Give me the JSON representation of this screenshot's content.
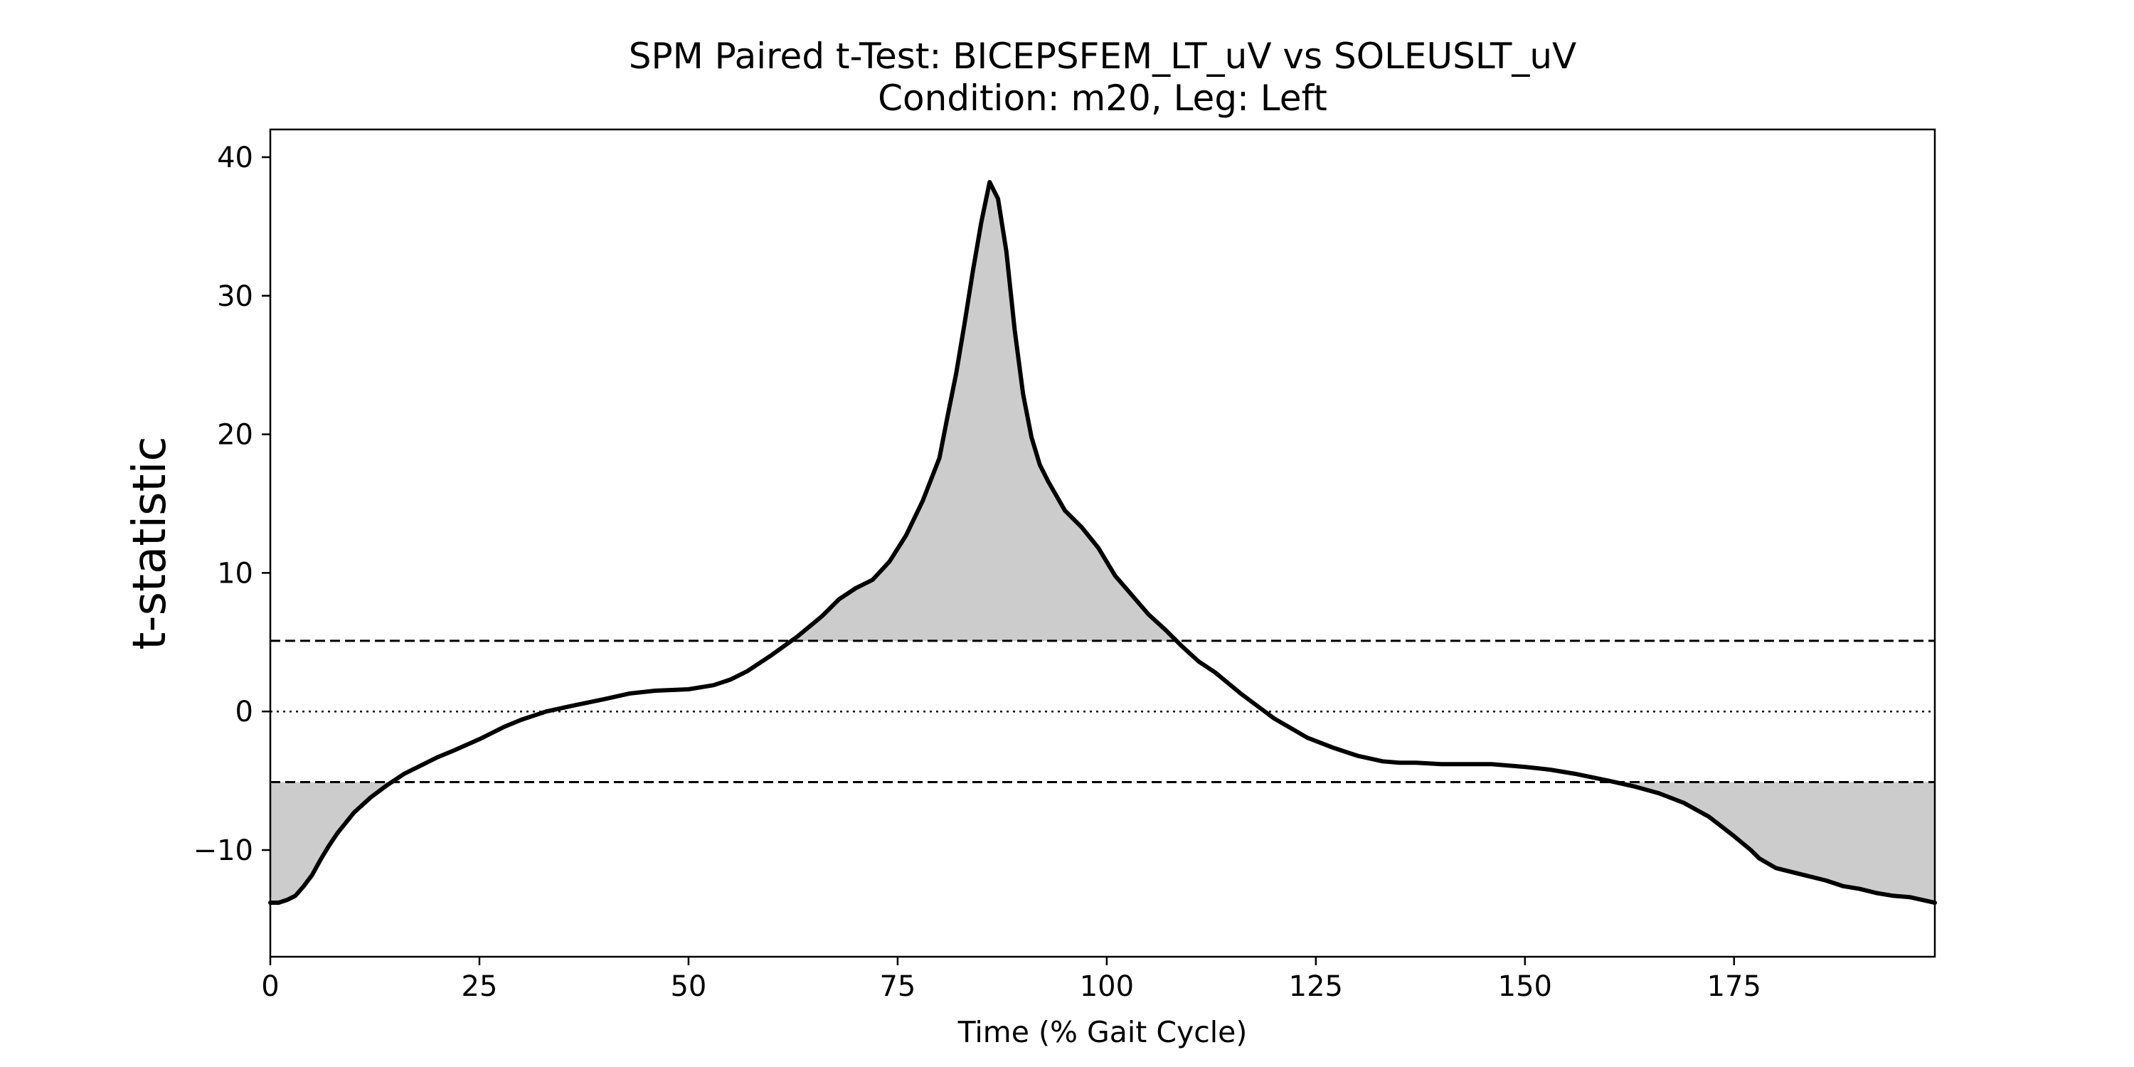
{
  "chart_data": {
    "type": "line",
    "title": "SPM Paired t-Test: BICEPSFEM_LT_uV vs SOLEUSLT_uV",
    "subtitle": "Condition: m20, Leg: Left",
    "xlabel": "Time (% Gait Cycle)",
    "ylabel": "t-statistic",
    "xlim": [
      0,
      199
    ],
    "ylim": [
      -17.7,
      42
    ],
    "x_ticks": [
      0,
      25,
      50,
      75,
      100,
      125,
      150,
      175
    ],
    "y_ticks": [
      -10,
      0,
      10,
      20,
      30,
      40
    ],
    "y_tick_labels": [
      "−10",
      "0",
      "10",
      "20",
      "30",
      "40"
    ],
    "threshold_upper": 5.1,
    "threshold_lower": -5.1,
    "zero_line": 0,
    "grid": false,
    "colors": {
      "line": "#000000",
      "fill": "#cccccc",
      "threshold": "#000000"
    },
    "series": [
      {
        "x": [
          0,
          1,
          2,
          3,
          4,
          5,
          6,
          7,
          8,
          10,
          12,
          14,
          16,
          18,
          20,
          22,
          25,
          28,
          30,
          33,
          36,
          40,
          43,
          46,
          50,
          53,
          55,
          57,
          60,
          63,
          66,
          68,
          70,
          72,
          74,
          76,
          78,
          80,
          81,
          82,
          83,
          84,
          85,
          86,
          87,
          88,
          89,
          90,
          91,
          92,
          93,
          95,
          97,
          99,
          101,
          103,
          105,
          107,
          109,
          111,
          113,
          116,
          120,
          124,
          127,
          130,
          133,
          135,
          137,
          140,
          143,
          146,
          150,
          153,
          156,
          160,
          163,
          166,
          169,
          172,
          175,
          177,
          178,
          180,
          182,
          184,
          186,
          188,
          190,
          192,
          194,
          196,
          199
        ],
        "y": [
          -13.8,
          -13.8,
          -13.6,
          -13.3,
          -12.6,
          -11.8,
          -10.7,
          -9.7,
          -8.8,
          -7.3,
          -6.2,
          -5.3,
          -4.5,
          -3.9,
          -3.3,
          -2.8,
          -2.0,
          -1.1,
          -0.6,
          0.0,
          0.4,
          0.9,
          1.3,
          1.5,
          1.6,
          1.9,
          2.3,
          2.9,
          4.1,
          5.4,
          6.9,
          8.1,
          8.9,
          9.5,
          10.8,
          12.7,
          15.2,
          18.3,
          21.4,
          24.4,
          28.0,
          31.8,
          35.3,
          38.2,
          37.0,
          33.2,
          27.5,
          22.9,
          19.8,
          17.8,
          16.6,
          14.5,
          13.3,
          11.8,
          9.8,
          8.4,
          7.0,
          5.9,
          4.7,
          3.6,
          2.8,
          1.3,
          -0.5,
          -1.9,
          -2.6,
          -3.2,
          -3.6,
          -3.7,
          -3.7,
          -3.8,
          -3.8,
          -3.8,
          -4.0,
          -4.2,
          -4.5,
          -5.0,
          -5.4,
          -5.9,
          -6.6,
          -7.6,
          -9.0,
          -10.0,
          -10.6,
          -11.3,
          -11.6,
          -11.9,
          -12.2,
          -12.6,
          -12.8,
          -13.1,
          -13.3,
          -13.4,
          -13.8
        ]
      }
    ]
  }
}
